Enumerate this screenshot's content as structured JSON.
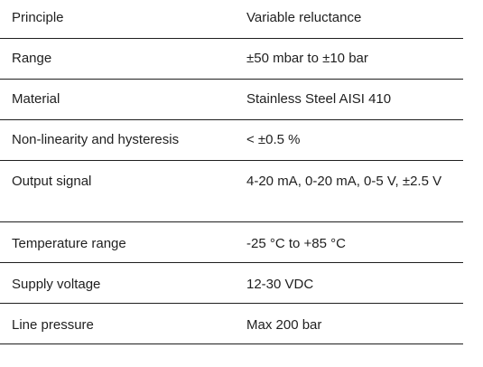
{
  "specs": [
    {
      "label": "Principle",
      "value": "Variable reluctance"
    },
    {
      "label": "Range",
      "value": "±50 mbar to ±10 bar"
    },
    {
      "label": "Material",
      "value": "Stainless Steel AISI 410"
    },
    {
      "label": "Non-linearity and hysteresis",
      "value": "< ±0.5 %"
    },
    {
      "label": "Output signal",
      "value": "4-20 mA, 0-20 mA, 0-5 V, ±2.5 V"
    },
    {
      "label": "Temperature range",
      "value": "-25 °C to +85 °C"
    },
    {
      "label": "Supply voltage",
      "value": "12-30 VDC"
    },
    {
      "label": "Line pressure",
      "value": "Max 200 bar"
    }
  ]
}
